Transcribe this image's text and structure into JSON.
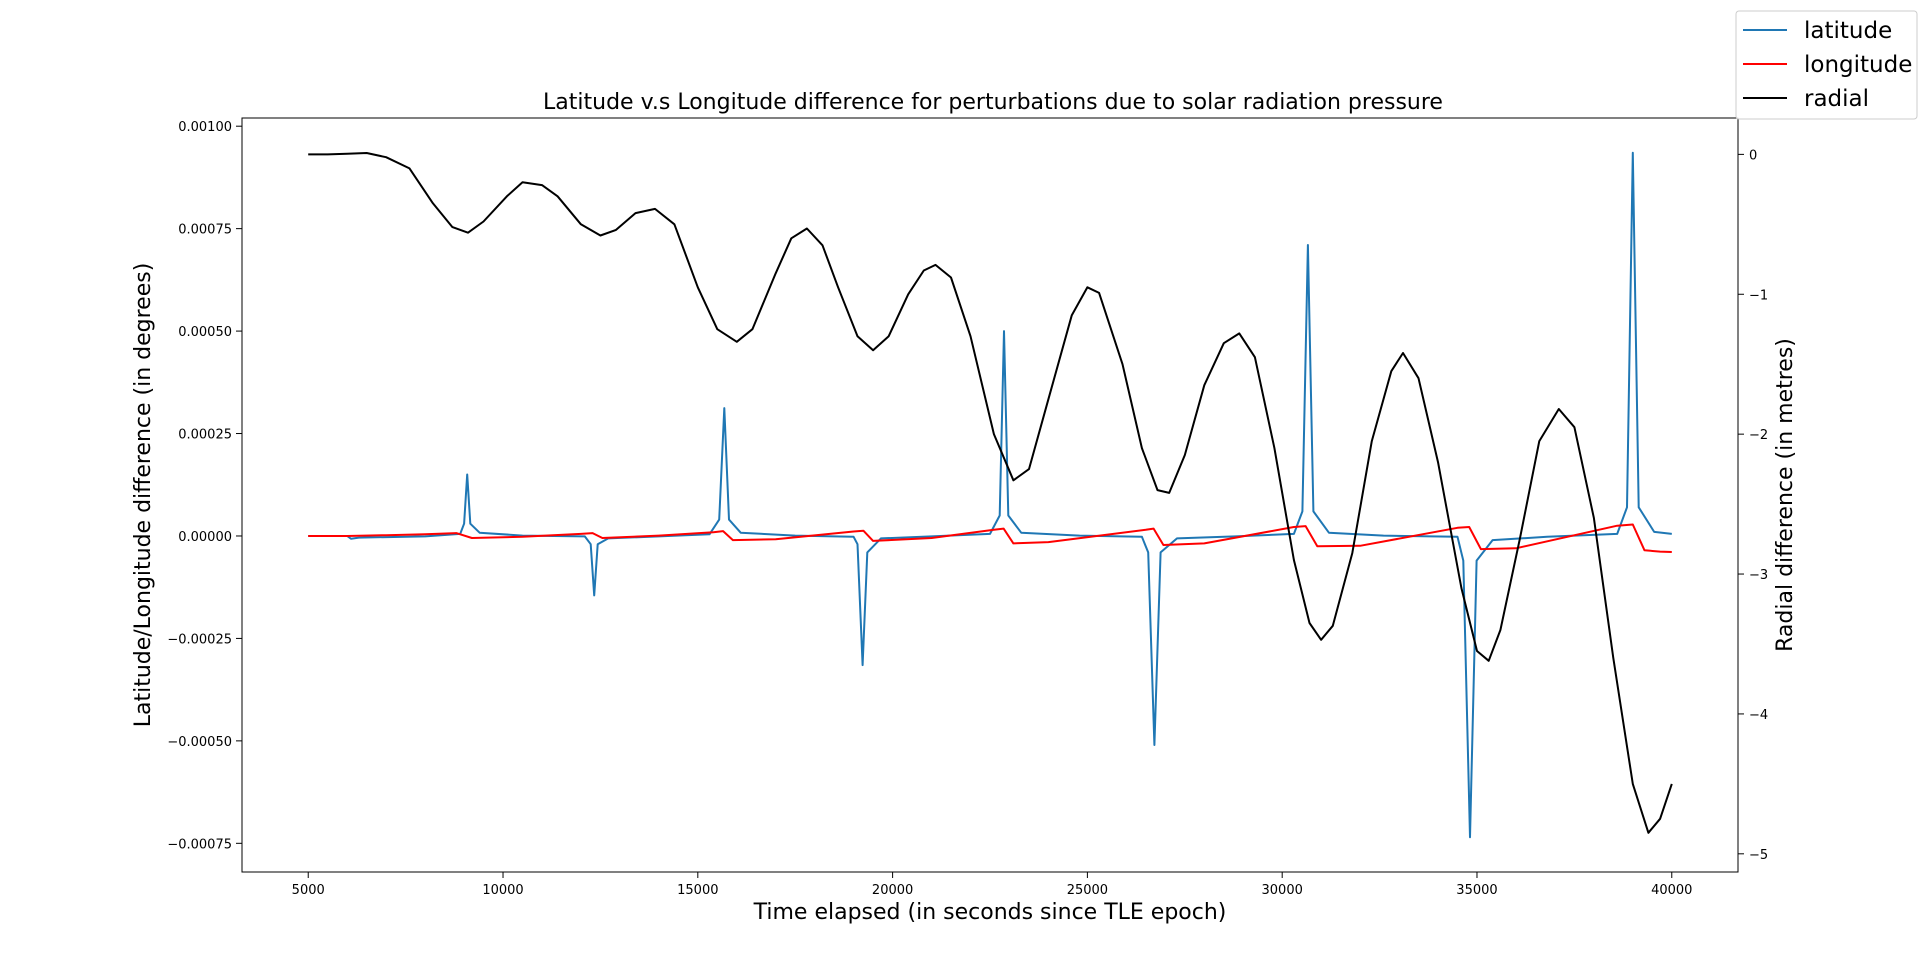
{
  "chart_data": {
    "type": "line",
    "title": "Latitude v.s Longitude difference for perturbations due to solar radiation pressure",
    "xlabel": "Time elapsed (in seconds since TLE epoch)",
    "ylabel": "Latitude/Longitude difference (in degrees)",
    "y2label": "Radial difference (in metres)",
    "xlim": [
      3300,
      41700
    ],
    "ylim": [
      -0.00082,
      0.00102
    ],
    "y2lim": [
      -5.13,
      0.26
    ],
    "xticks": [
      5000,
      10000,
      15000,
      20000,
      25000,
      30000,
      35000,
      40000
    ],
    "xtick_labels": [
      "5000",
      "10000",
      "15000",
      "20000",
      "25000",
      "30000",
      "35000",
      "40000"
    ],
    "yticks": [
      -0.00075,
      -0.0005,
      -0.00025,
      0.0,
      0.00025,
      0.0005,
      0.00075,
      0.001
    ],
    "ytick_labels": [
      "−0.00075",
      "−0.00050",
      "−0.00025",
      "0.00000",
      "0.00025",
      "0.00050",
      "0.00075",
      "0.00100"
    ],
    "y2ticks": [
      0,
      -1,
      -2,
      -3,
      -4,
      -5
    ],
    "y2tick_labels": [
      "0",
      "−1",
      "−2",
      "−3",
      "−4",
      "−5"
    ],
    "grid": false,
    "legend_placement": "top-right",
    "series": [
      {
        "name": "latitude",
        "axis": "left",
        "color": "#1f77b4",
        "points": [
          [
            5000,
            0
          ],
          [
            6000,
            0
          ],
          [
            6100,
            -7e-06
          ],
          [
            6300,
            -4e-06
          ],
          [
            8000,
            -1e-06
          ],
          [
            8900,
            5e-06
          ],
          [
            9000,
            3e-05
          ],
          [
            9080,
            0.00015
          ],
          [
            9160,
            3e-05
          ],
          [
            9400,
            8e-06
          ],
          [
            10500,
            1e-06
          ],
          [
            12100,
            -1e-06
          ],
          [
            12250,
            -2e-05
          ],
          [
            12340,
            -0.000145
          ],
          [
            12430,
            -2e-05
          ],
          [
            12700,
            -6e-06
          ],
          [
            14000,
            -1e-06
          ],
          [
            15300,
            4e-06
          ],
          [
            15550,
            4e-05
          ],
          [
            15680,
            0.000312
          ],
          [
            15800,
            4e-05
          ],
          [
            16100,
            8e-06
          ],
          [
            17500,
            1e-06
          ],
          [
            19000,
            -2e-06
          ],
          [
            19100,
            -2e-05
          ],
          [
            19230,
            -0.000315
          ],
          [
            19350,
            -4e-05
          ],
          [
            19700,
            -6e-06
          ],
          [
            21000,
            -1e-06
          ],
          [
            22500,
            5e-06
          ],
          [
            22750,
            5e-05
          ],
          [
            22860,
            0.0005
          ],
          [
            22970,
            5e-05
          ],
          [
            23300,
            8e-06
          ],
          [
            24800,
            1e-06
          ],
          [
            26400,
            -2e-06
          ],
          [
            26560,
            -4e-05
          ],
          [
            26720,
            -0.00051
          ],
          [
            26880,
            -4e-05
          ],
          [
            27300,
            -6e-06
          ],
          [
            28800,
            -1e-06
          ],
          [
            30300,
            5e-06
          ],
          [
            30520,
            6e-05
          ],
          [
            30660,
            0.00071
          ],
          [
            30800,
            6e-05
          ],
          [
            31200,
            8e-06
          ],
          [
            32600,
            1e-06
          ],
          [
            34500,
            -2e-06
          ],
          [
            34650,
            -6e-05
          ],
          [
            34820,
            -0.000735
          ],
          [
            34990,
            -6e-05
          ],
          [
            35400,
            -1e-05
          ],
          [
            36800,
            -2e-06
          ],
          [
            38600,
            5e-06
          ],
          [
            38850,
            7e-05
          ],
          [
            39000,
            0.000935
          ],
          [
            39150,
            7e-05
          ],
          [
            39550,
            1e-05
          ],
          [
            40000,
            5e-06
          ]
        ]
      },
      {
        "name": "longitude",
        "axis": "left",
        "color": "#ff0000",
        "points": [
          [
            5000,
            0
          ],
          [
            6000,
            0
          ],
          [
            7000,
            2e-06
          ],
          [
            8000,
            4e-06
          ],
          [
            8800,
            7e-06
          ],
          [
            9200,
            -5e-06
          ],
          [
            10500,
            -2e-06
          ],
          [
            12000,
            5e-06
          ],
          [
            12300,
            7e-06
          ],
          [
            12550,
            -5e-06
          ],
          [
            14000,
            1e-06
          ],
          [
            15400,
            9e-06
          ],
          [
            15650,
            1.2e-05
          ],
          [
            15900,
            -1e-05
          ],
          [
            17000,
            -8e-06
          ],
          [
            19000,
            1.1e-05
          ],
          [
            19250,
            1.3e-05
          ],
          [
            19500,
            -1.2e-05
          ],
          [
            21000,
            -5e-06
          ],
          [
            22600,
            1.5e-05
          ],
          [
            22850,
            1.8e-05
          ],
          [
            23100,
            -1.8e-05
          ],
          [
            24000,
            -1.5e-05
          ],
          [
            26500,
            1.5e-05
          ],
          [
            26700,
            1.8e-05
          ],
          [
            26950,
            -2.2e-05
          ],
          [
            28000,
            -1.8e-05
          ],
          [
            30300,
            2.2e-05
          ],
          [
            30600,
            2.4e-05
          ],
          [
            30900,
            -2.5e-05
          ],
          [
            32000,
            -2.4e-05
          ],
          [
            34500,
            2e-05
          ],
          [
            34800,
            2.2e-05
          ],
          [
            35100,
            -3.2e-05
          ],
          [
            36000,
            -3e-05
          ],
          [
            38600,
            2.5e-05
          ],
          [
            39000,
            2.8e-05
          ],
          [
            39300,
            -3.5e-05
          ],
          [
            39700,
            -3.8e-05
          ],
          [
            40000,
            -3.9e-05
          ]
        ]
      },
      {
        "name": "radial",
        "axis": "right",
        "color": "#000000",
        "points": [
          [
            5000,
            0
          ],
          [
            5500,
            0
          ],
          [
            6000,
            0.005
          ],
          [
            6500,
            0.01
          ],
          [
            7000,
            -0.02
          ],
          [
            7600,
            -0.1
          ],
          [
            8200,
            -0.35
          ],
          [
            8700,
            -0.52
          ],
          [
            9100,
            -0.56
          ],
          [
            9500,
            -0.48
          ],
          [
            10100,
            -0.3
          ],
          [
            10500,
            -0.2
          ],
          [
            11000,
            -0.22
          ],
          [
            11400,
            -0.3
          ],
          [
            12000,
            -0.5
          ],
          [
            12500,
            -0.58
          ],
          [
            12900,
            -0.54
          ],
          [
            13400,
            -0.42
          ],
          [
            13900,
            -0.39
          ],
          [
            14400,
            -0.5
          ],
          [
            15000,
            -0.95
          ],
          [
            15500,
            -1.25
          ],
          [
            16000,
            -1.34
          ],
          [
            16400,
            -1.25
          ],
          [
            17000,
            -0.85
          ],
          [
            17400,
            -0.6
          ],
          [
            17800,
            -0.53
          ],
          [
            18200,
            -0.65
          ],
          [
            18600,
            -0.95
          ],
          [
            19100,
            -1.3
          ],
          [
            19500,
            -1.4
          ],
          [
            19900,
            -1.3
          ],
          [
            20400,
            -1.0
          ],
          [
            20800,
            -0.83
          ],
          [
            21100,
            -0.79
          ],
          [
            21500,
            -0.88
          ],
          [
            22000,
            -1.3
          ],
          [
            22600,
            -2.0
          ],
          [
            23100,
            -2.33
          ],
          [
            23500,
            -2.25
          ],
          [
            24000,
            -1.75
          ],
          [
            24600,
            -1.15
          ],
          [
            25000,
            -0.95
          ],
          [
            25300,
            -0.99
          ],
          [
            25900,
            -1.5
          ],
          [
            26400,
            -2.1
          ],
          [
            26800,
            -2.4
          ],
          [
            27100,
            -2.42
          ],
          [
            27500,
            -2.15
          ],
          [
            28000,
            -1.65
          ],
          [
            28500,
            -1.35
          ],
          [
            28900,
            -1.28
          ],
          [
            29300,
            -1.45
          ],
          [
            29800,
            -2.1
          ],
          [
            30300,
            -2.9
          ],
          [
            30700,
            -3.35
          ],
          [
            31000,
            -3.47
          ],
          [
            31300,
            -3.37
          ],
          [
            31800,
            -2.85
          ],
          [
            32300,
            -2.05
          ],
          [
            32800,
            -1.55
          ],
          [
            33100,
            -1.42
          ],
          [
            33500,
            -1.6
          ],
          [
            34000,
            -2.2
          ],
          [
            34600,
            -3.1
          ],
          [
            35000,
            -3.55
          ],
          [
            35300,
            -3.62
          ],
          [
            35600,
            -3.4
          ],
          [
            36100,
            -2.75
          ],
          [
            36600,
            -2.05
          ],
          [
            37100,
            -1.82
          ],
          [
            37500,
            -1.95
          ],
          [
            38000,
            -2.6
          ],
          [
            38500,
            -3.6
          ],
          [
            39000,
            -4.5
          ],
          [
            39400,
            -4.85
          ],
          [
            39700,
            -4.75
          ],
          [
            40000,
            -4.5
          ]
        ]
      }
    ]
  }
}
